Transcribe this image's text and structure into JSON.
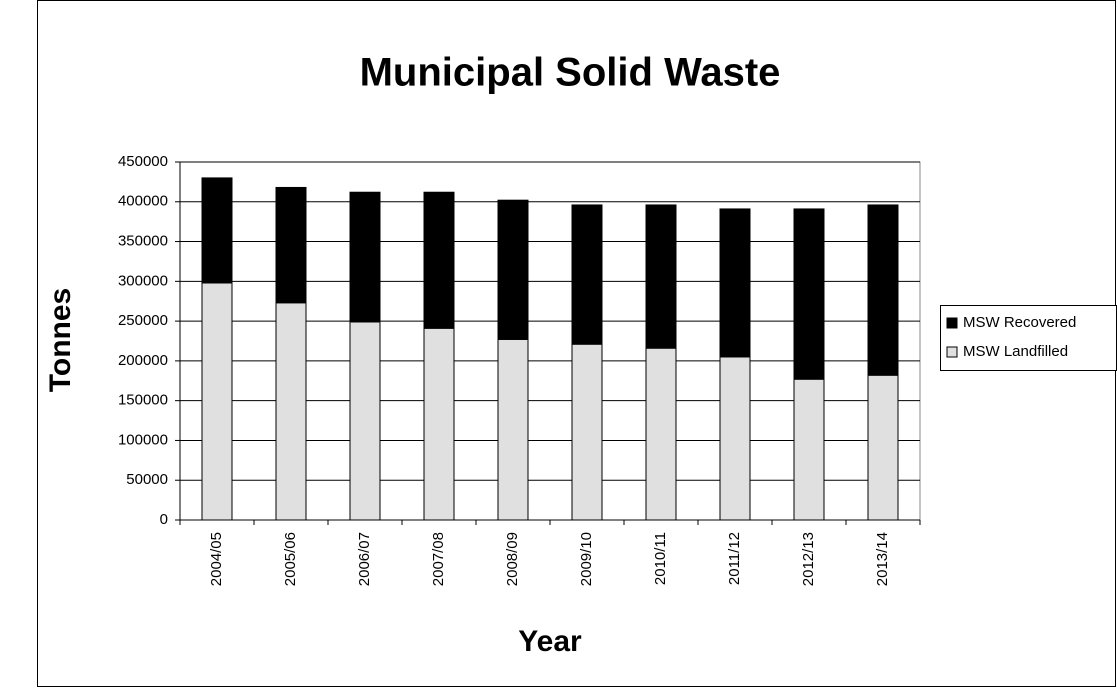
{
  "chart_data": {
    "type": "stacked_bar",
    "title": "Municipal Solid Waste",
    "x_label": "Year",
    "y_label": "Tonnes",
    "categories": [
      "2004/05",
      "2005/06",
      "2006/07",
      "2007/08",
      "2008/09",
      "2009/10",
      "2010/11",
      "2011/12",
      "2012/13",
      "2013/14"
    ],
    "series": [
      {
        "name": "MSW Landfilled",
        "color": "#e0e0e0",
        "values": [
          298000,
          273000,
          249000,
          241000,
          227000,
          221000,
          216000,
          205000,
          177000,
          182000
        ]
      },
      {
        "name": "MSW Recovered",
        "color": "#000000",
        "values": [
          132000,
          145000,
          163000,
          171000,
          175000,
          175000,
          180000,
          186000,
          214000,
          214000
        ]
      }
    ],
    "ylim": [
      0,
      450000
    ],
    "yticks": [
      0,
      50000,
      100000,
      150000,
      200000,
      250000,
      300000,
      350000,
      400000,
      450000
    ],
    "grid": true,
    "legend": "right"
  }
}
